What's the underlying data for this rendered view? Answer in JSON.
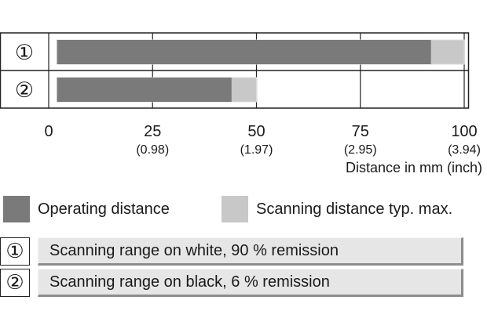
{
  "chart_data": {
    "type": "bar",
    "orientation": "horizontal",
    "categories": [
      "①",
      "②"
    ],
    "series": [
      {
        "name": "Operating distance",
        "values": [
          92,
          44
        ],
        "color": "#7a7a7a"
      },
      {
        "name": "Scanning distance typ. max.",
        "values": [
          100,
          50
        ],
        "color": "#c8c8c8"
      }
    ],
    "bar_start": 2,
    "xlim": [
      0,
      100
    ],
    "xticks": [
      0,
      25,
      50,
      75,
      100
    ],
    "xtick_labels": [
      "0",
      "25",
      "50",
      "75",
      "100"
    ],
    "xtick_sublabels": [
      "",
      "(0.98)",
      "(1.97)",
      "(2.95)",
      "(3.94)"
    ],
    "xlabel": "Distance in mm (inch)",
    "grid": true,
    "legend_position": "below"
  },
  "notes": [
    {
      "marker": "①",
      "text": "Scanning range on white, 90 % remission"
    },
    {
      "marker": "②",
      "text": "Scanning range on black, 6 % remission"
    }
  ]
}
